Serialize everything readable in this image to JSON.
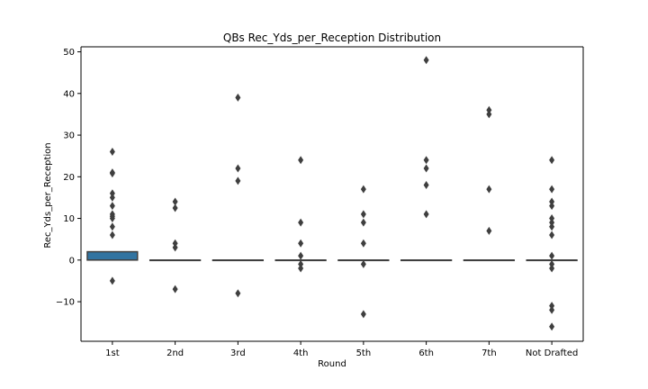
{
  "chart_data": {
    "type": "box",
    "title": "QBs Rec_Yds_per_Reception Distribution",
    "xlabel": "Round",
    "ylabel": "Rec_Yds_per_Reception",
    "categories": [
      "1st",
      "2nd",
      "3rd",
      "4th",
      "5th",
      "6th",
      "7th",
      "Not Drafted"
    ],
    "ylim": [
      -19.5,
      51.2
    ],
    "yticks": [
      -10,
      0,
      10,
      20,
      30,
      40,
      50
    ],
    "ytick_labels": [
      "−10",
      "0",
      "10",
      "20",
      "30",
      "40",
      "50"
    ],
    "grid": false,
    "box_color": "#3274a1",
    "edge_color": "#3f3f3f",
    "groups": [
      {
        "category": "1st",
        "q1": 0,
        "median": 0,
        "q3": 2,
        "whisker_low": 0,
        "whisker_high": 2,
        "outliers": [
          26,
          21,
          20.8,
          16,
          15,
          13,
          11,
          10.5,
          10,
          8,
          6,
          -5
        ]
      },
      {
        "category": "2nd",
        "q1": 0,
        "median": 0,
        "q3": 0,
        "whisker_low": 0,
        "whisker_high": 0,
        "outliers": [
          14,
          12.5,
          4,
          3,
          -7
        ]
      },
      {
        "category": "3rd",
        "q1": 0,
        "median": 0,
        "q3": 0,
        "whisker_low": 0,
        "whisker_high": 0,
        "outliers": [
          39,
          22,
          19,
          -8
        ]
      },
      {
        "category": "4th",
        "q1": 0,
        "median": 0,
        "q3": 0,
        "whisker_low": 0,
        "whisker_high": 0,
        "outliers": [
          24,
          9,
          4,
          1,
          -1,
          -2
        ]
      },
      {
        "category": "5th",
        "q1": 0,
        "median": 0,
        "q3": 0,
        "whisker_low": 0,
        "whisker_high": 0,
        "outliers": [
          17,
          11,
          9,
          4,
          -1,
          -13
        ]
      },
      {
        "category": "6th",
        "q1": 0,
        "median": 0,
        "q3": 0,
        "whisker_low": 0,
        "whisker_high": 0,
        "outliers": [
          48,
          24,
          22,
          18,
          11
        ]
      },
      {
        "category": "7th",
        "q1": 0,
        "median": 0,
        "q3": 0,
        "whisker_low": 0,
        "whisker_high": 0,
        "outliers": [
          36,
          35,
          17,
          7
        ]
      },
      {
        "category": "Not Drafted",
        "q1": 0,
        "median": 0,
        "q3": 0,
        "whisker_low": 0,
        "whisker_high": 0,
        "outliers": [
          24,
          17,
          14,
          13,
          10,
          9,
          8,
          6,
          1,
          -1,
          -2,
          -11,
          -12,
          -16
        ]
      }
    ]
  }
}
